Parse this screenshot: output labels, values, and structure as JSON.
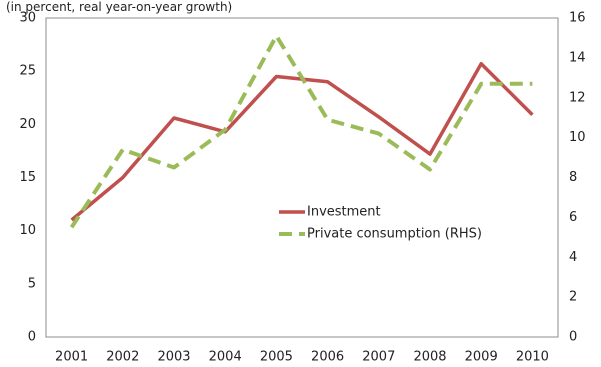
{
  "chart_data": {
    "type": "line",
    "subtitle": "(in percent, real year-on-year growth)",
    "categories": [
      "2001",
      "2002",
      "2003",
      "2004",
      "2005",
      "2006",
      "2007",
      "2008",
      "2009",
      "2010"
    ],
    "series": [
      {
        "name": "Investment",
        "axis": "left",
        "style": "solid",
        "color": "#c0504d",
        "values": [
          11.0,
          15.0,
          20.6,
          19.3,
          24.5,
          24.0,
          20.7,
          17.2,
          25.7,
          20.9
        ]
      },
      {
        "name": "Private consumption (RHS)",
        "axis": "right",
        "style": "dashed",
        "color": "#9bbb59",
        "values": [
          5.5,
          9.4,
          8.5,
          10.4,
          15.1,
          10.9,
          10.2,
          8.4,
          12.7,
          12.7
        ]
      }
    ],
    "y_left": {
      "ylim": [
        0,
        30
      ],
      "ticks": [
        "0",
        "5",
        "10",
        "15",
        "20",
        "25",
        "30"
      ]
    },
    "y_right": {
      "ylim": [
        0,
        16
      ],
      "ticks": [
        "0",
        "2",
        "4",
        "6",
        "8",
        "10",
        "12",
        "14",
        "16"
      ]
    },
    "grid": false,
    "legend_position": "center-right"
  }
}
